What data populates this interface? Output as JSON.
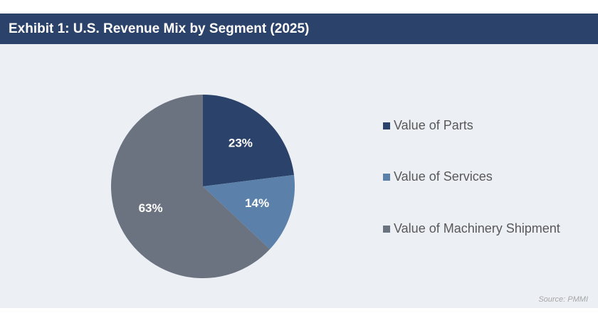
{
  "header": {
    "title": "Exhibit 1: U.S. Revenue Mix by Segment (2025)"
  },
  "source": "Source: PMMI",
  "colors": {
    "header_bg": "#2b426b",
    "panel_bg": "#eceff4",
    "label_light": "#ffffff"
  },
  "chart_data": {
    "type": "pie",
    "title": "Exhibit 1: U.S. Revenue Mix by Segment (2025)",
    "legend_position": "right",
    "slices": [
      {
        "name": "Value of Parts",
        "value": 23,
        "label": "23%",
        "color": "#2b426b"
      },
      {
        "name": "Value of Services",
        "value": 14,
        "label": "14%",
        "color": "#5b80aa"
      },
      {
        "name": "Value of Machinery Shipment",
        "value": 63,
        "label": "63%",
        "color": "#6b7280"
      }
    ]
  }
}
